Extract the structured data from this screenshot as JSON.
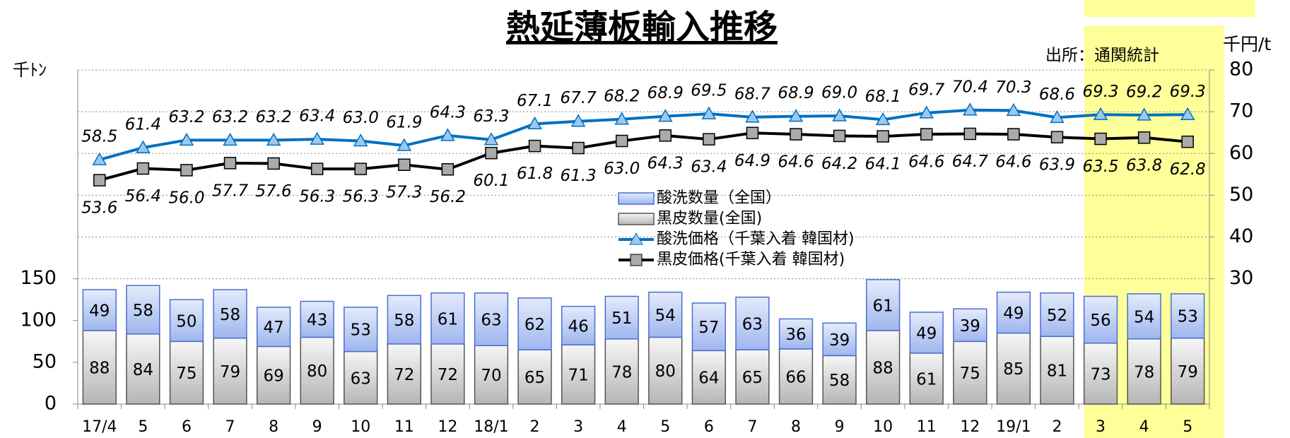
{
  "chart_data": {
    "type": "combo",
    "title": "熱延薄板輸入推移",
    "source": "出所：通関統計",
    "y_unit": "千ﾄﾝ",
    "y2_unit": "千円/t",
    "categories": [
      "17/4",
      "5",
      "6",
      "7",
      "8",
      "9",
      "10",
      "11",
      "12",
      "18/1",
      "2",
      "3",
      "4",
      "5",
      "6",
      "7",
      "8",
      "9",
      "10",
      "11",
      "12",
      "19/1",
      "2",
      "3",
      "4",
      "5"
    ],
    "series": [
      {
        "name": "酸洗数量（全国）",
        "type": "bar",
        "color": "#4a6fd0",
        "values": [
          49,
          58,
          50,
          58,
          47,
          43,
          53,
          58,
          61,
          63,
          62,
          46,
          51,
          54,
          57,
          63,
          36,
          39,
          61,
          49,
          39,
          49,
          52,
          56,
          54,
          53
        ]
      },
      {
        "name": "黒皮数量(全国)",
        "type": "bar",
        "color": "#555555",
        "values": [
          88,
          84,
          75,
          79,
          69,
          80,
          63,
          72,
          72,
          70,
          65,
          71,
          78,
          80,
          64,
          65,
          66,
          58,
          88,
          61,
          75,
          85,
          81,
          73,
          78,
          79
        ]
      },
      {
        "name": "酸洗価格（千葉入着 韓国材)",
        "type": "line",
        "axis": "y2",
        "color": "#0070c0",
        "values": [
          58.5,
          61.4,
          63.2,
          63.2,
          63.2,
          63.4,
          63.0,
          61.9,
          64.3,
          63.3,
          67.1,
          67.7,
          68.2,
          68.9,
          69.5,
          68.7,
          68.9,
          69.0,
          68.1,
          69.7,
          70.4,
          70.3,
          68.6,
          69.3,
          69.2,
          69.3
        ],
        "value_labels": [
          "58.5",
          "61.4",
          "63.2",
          "63.2",
          "63.2",
          "63.4",
          "63.0",
          "61.9",
          "64.3",
          "63.3",
          "67.1",
          "67.7",
          "68.2",
          "68.9",
          "69.5",
          "68.7",
          "68.9",
          "69.0",
          "68.1",
          "69.7",
          "70.4",
          "70.3",
          "68.6",
          "69.3",
          "69.2",
          "69.3"
        ]
      },
      {
        "name": "黒皮価格(千葉入着 韓国材)",
        "type": "line",
        "axis": "y2",
        "color": "#000000",
        "values": [
          53.6,
          56.4,
          56.0,
          57.7,
          57.6,
          56.3,
          56.3,
          57.3,
          56.2,
          60.1,
          61.8,
          61.3,
          63.0,
          64.3,
          63.4,
          64.9,
          64.6,
          64.2,
          64.1,
          64.6,
          64.7,
          64.6,
          63.9,
          63.5,
          63.8,
          62.8
        ],
        "value_labels": [
          "53.6",
          "56.4",
          "56.0",
          "57.7",
          "57.6",
          "56.3",
          "56.3",
          "57.3",
          "56.2",
          "60.1",
          "61.8",
          "61.3",
          "63.0",
          "64.3",
          "63.4",
          "64.9",
          "64.6",
          "64.2",
          "64.1",
          "64.6",
          "64.7",
          "64.6",
          "63.9",
          "63.5",
          "63.8",
          "62.8"
        ]
      }
    ],
    "ylim": [
      0,
      400
    ],
    "yticks": [
      0,
      50,
      100,
      150
    ],
    "y2lim": [
      0,
      80
    ],
    "y2ticks": [
      30,
      40,
      50,
      60,
      70,
      80
    ],
    "grid": true,
    "legend": "center"
  }
}
